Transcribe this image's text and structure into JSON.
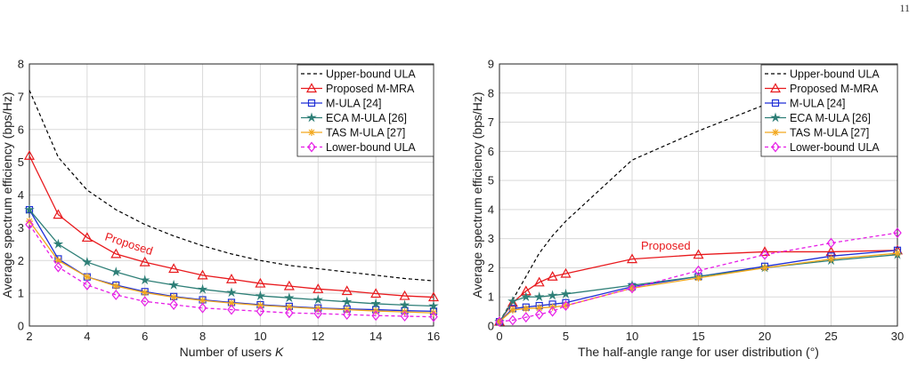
{
  "page_number": "11",
  "colors": {
    "upper": "#000000",
    "proposed": "#e8191d",
    "mula": "#1f2fd6",
    "eca": "#2e7f77",
    "tas": "#f2a81e",
    "lower": "#e61ee6"
  },
  "chart_data": [
    {
      "type": "line",
      "xlabel_text": "Number of users ",
      "xlabel_var": "K",
      "ylabel": "Average spectrum efficiency (bps/Hz)",
      "xlim": [
        2,
        16
      ],
      "ylim": [
        0,
        8
      ],
      "xticks": [
        2,
        4,
        6,
        8,
        10,
        12,
        14,
        16
      ],
      "yticks": [
        0,
        1,
        2,
        3,
        4,
        5,
        6,
        7,
        8
      ],
      "grid": true,
      "legend_position": "top-right",
      "annotation": "Proposed",
      "x": [
        2,
        3,
        4,
        5,
        6,
        7,
        8,
        9,
        10,
        11,
        12,
        13,
        14,
        15,
        16
      ],
      "series": [
        {
          "name": "Upper-bound ULA",
          "key": "upper",
          "marker": "none",
          "style": "dashed",
          "values": [
            7.2,
            5.15,
            4.15,
            3.55,
            3.1,
            2.75,
            2.45,
            2.2,
            2.0,
            1.85,
            1.75,
            1.65,
            1.55,
            1.45,
            1.38
          ]
        },
        {
          "name": "Proposed M-MRA",
          "key": "proposed",
          "marker": "triangle",
          "style": "solid",
          "values": [
            5.2,
            3.4,
            2.7,
            2.2,
            1.95,
            1.75,
            1.55,
            1.43,
            1.3,
            1.22,
            1.13,
            1.07,
            0.99,
            0.92,
            0.88
          ]
        },
        {
          "name": "M-ULA [24]",
          "key": "mula",
          "marker": "square",
          "style": "solid",
          "values": [
            3.55,
            2.05,
            1.5,
            1.25,
            1.05,
            0.9,
            0.8,
            0.72,
            0.65,
            0.6,
            0.55,
            0.52,
            0.5,
            0.47,
            0.45
          ]
        },
        {
          "name": "ECA M-ULA [26]",
          "key": "eca",
          "marker": "star",
          "style": "solid",
          "values": [
            3.55,
            2.5,
            1.95,
            1.65,
            1.4,
            1.25,
            1.12,
            1.02,
            0.92,
            0.86,
            0.8,
            0.74,
            0.68,
            0.64,
            0.61
          ]
        },
        {
          "name": "TAS M-ULA [27]",
          "key": "tas",
          "marker": "asterisk",
          "style": "solid",
          "values": [
            3.2,
            2.0,
            1.5,
            1.22,
            1.02,
            0.88,
            0.78,
            0.7,
            0.63,
            0.58,
            0.53,
            0.5,
            0.46,
            0.43,
            0.4
          ]
        },
        {
          "name": "Lower-bound ULA",
          "key": "lower",
          "marker": "diamond",
          "style": "dashed",
          "values": [
            3.1,
            1.8,
            1.25,
            0.95,
            0.75,
            0.65,
            0.55,
            0.5,
            0.45,
            0.4,
            0.38,
            0.35,
            0.32,
            0.3,
            0.28
          ]
        }
      ]
    },
    {
      "type": "line",
      "xlabel": "The half-angle range for user distribution (°)",
      "ylabel": "Average spectrum efficiency (bps/Hz)",
      "xlim": [
        0,
        30
      ],
      "ylim": [
        0,
        9
      ],
      "xticks": [
        0,
        5,
        10,
        15,
        20,
        25,
        30
      ],
      "yticks": [
        0,
        1,
        2,
        3,
        4,
        5,
        6,
        7,
        8,
        9
      ],
      "grid": true,
      "legend_position": "top-right",
      "annotation": "Proposed",
      "series": [
        {
          "name": "Upper-bound ULA",
          "key": "upper",
          "marker": "none",
          "style": "dashed",
          "x": [
            0,
            1,
            2,
            3,
            4,
            5,
            10,
            15,
            20,
            25,
            30
          ],
          "values": [
            0.15,
            0.9,
            1.7,
            2.5,
            3.1,
            3.6,
            5.7,
            6.7,
            7.6,
            8.3,
            8.8
          ]
        },
        {
          "name": "Proposed M-MRA",
          "key": "proposed",
          "marker": "triangle",
          "style": "solid",
          "x": [
            0,
            1,
            2,
            3,
            4,
            5,
            10,
            15,
            20,
            25,
            30
          ],
          "values": [
            0.15,
            0.8,
            1.2,
            1.5,
            1.7,
            1.8,
            2.3,
            2.45,
            2.55,
            2.55,
            2.6
          ]
        },
        {
          "name": "M-ULA [24]",
          "key": "mula",
          "marker": "square",
          "style": "solid",
          "x": [
            0,
            1,
            2,
            3,
            4,
            5,
            10,
            15,
            20,
            25,
            30
          ],
          "values": [
            0.15,
            0.6,
            0.65,
            0.7,
            0.75,
            0.8,
            1.35,
            1.7,
            2.05,
            2.4,
            2.6
          ]
        },
        {
          "name": "ECA M-ULA [26]",
          "key": "eca",
          "marker": "star",
          "style": "solid",
          "x": [
            0,
            1,
            2,
            3,
            4,
            5,
            10,
            15,
            20,
            25,
            30
          ],
          "values": [
            0.15,
            0.85,
            1.0,
            1.0,
            1.05,
            1.1,
            1.4,
            1.7,
            2.0,
            2.25,
            2.45
          ]
        },
        {
          "name": "TAS M-ULA [27]",
          "key": "tas",
          "marker": "asterisk",
          "style": "solid",
          "x": [
            0,
            1,
            2,
            3,
            4,
            5,
            10,
            15,
            20,
            25,
            30
          ],
          "values": [
            0.15,
            0.55,
            0.6,
            0.62,
            0.65,
            0.7,
            1.3,
            1.65,
            2.0,
            2.3,
            2.5
          ]
        },
        {
          "name": "Lower-bound ULA",
          "key": "lower",
          "marker": "diamond",
          "style": "dashed",
          "x": [
            0,
            1,
            2,
            3,
            4,
            5,
            10,
            15,
            20,
            25,
            30
          ],
          "values": [
            0.15,
            0.2,
            0.3,
            0.4,
            0.5,
            0.7,
            1.3,
            1.9,
            2.45,
            2.85,
            3.2
          ]
        }
      ]
    }
  ]
}
